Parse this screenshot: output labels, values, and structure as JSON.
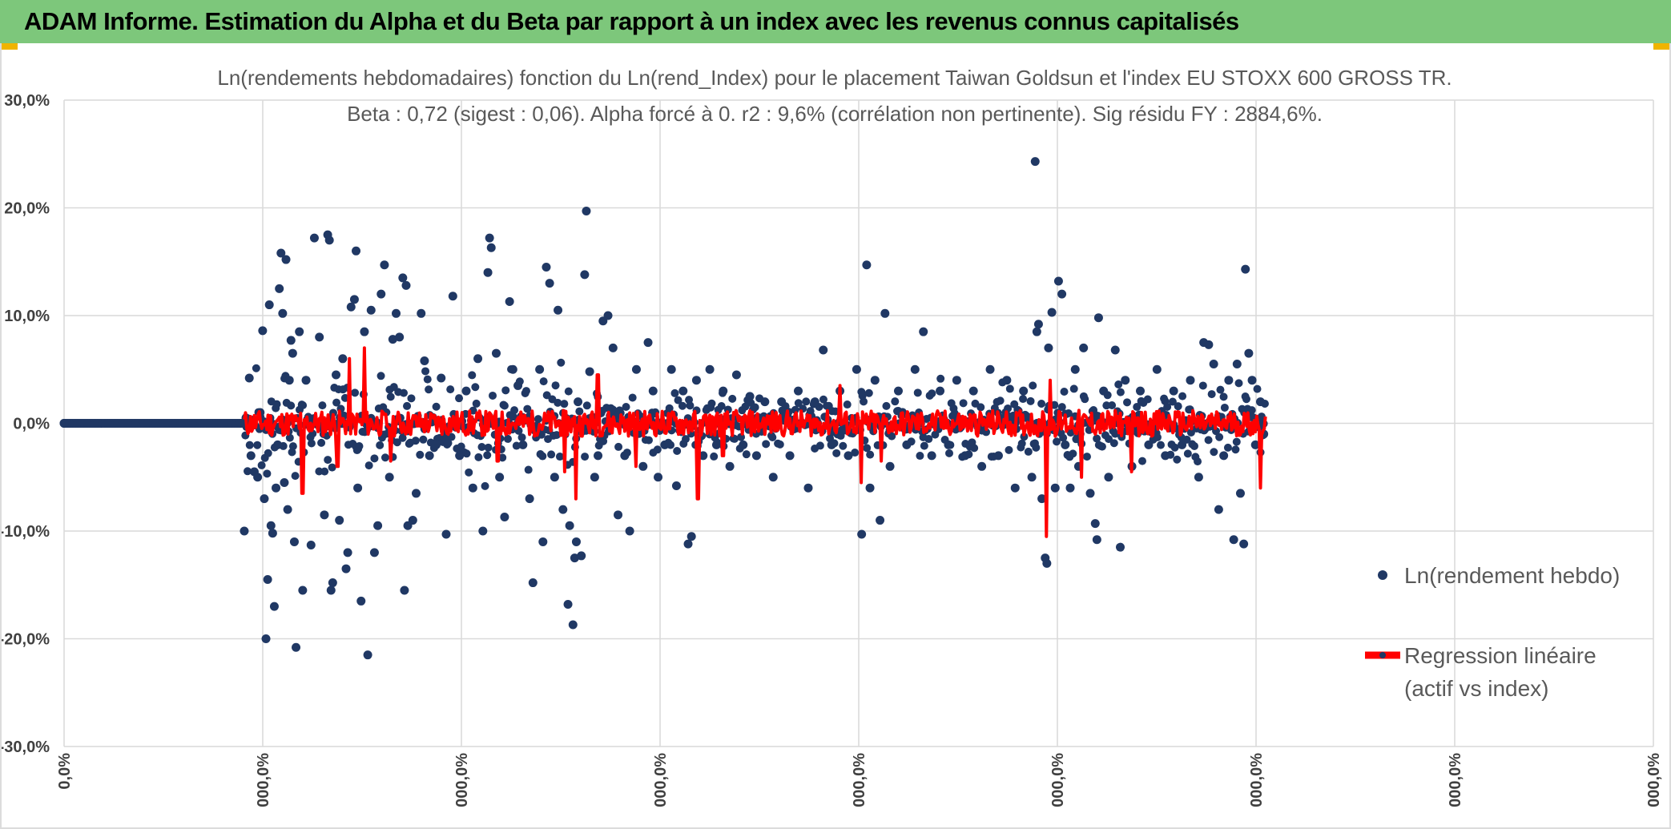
{
  "header": {
    "title": "ADAM Informe. Estimation du Alpha et du Beta par rapport à un index avec les revenus connus capitalisés"
  },
  "colors": {
    "banner": "#7dc77b",
    "scatter": "#203864",
    "regression": "#ff0000",
    "grid": "#d9d9d9"
  },
  "chart_data": {
    "type": "scatter",
    "title_lines": [
      "Ln(rendements hebdomadaires) fonction du Ln(rend_Index) pour le placement Taiwan Goldsun  et l'index EU STOXX 600 GROSS TR.",
      "Beta : 0,72 (sigest : 0,06). Alpha forcé à 0. r2 : 9,6% (corrélation non pertinente). Sig résidu FY : 2884,6%."
    ],
    "ylim": [
      -30,
      30
    ],
    "y_ticks": [
      "30,0%",
      "20,0%",
      "10,0%",
      "0,0%",
      "-10,0%",
      "-20,0%",
      "-30,0%"
    ],
    "x_ticks": [
      "0,0%",
      "000,0%",
      "000,0%",
      "000,0%",
      "000,0%",
      "000,0%",
      "000,0%",
      "000,0%",
      "000,0%"
    ],
    "grid": true,
    "legend_position": "right",
    "legend": [
      {
        "label": "Ln(rendement hebdo)",
        "kind": "marker"
      },
      {
        "label_lines": [
          "Regression linéaire",
          "(actif vs index)"
        ],
        "kind": "line"
      }
    ],
    "series": [
      {
        "name": "Ln(rendement hebdo)",
        "points": [
          [
            0,
            0
          ],
          [
            216,
            -10
          ],
          [
            218,
            0.5
          ],
          [
            222,
            4.2
          ],
          [
            224,
            -3
          ],
          [
            228,
            -4.5
          ],
          [
            232,
            -5
          ],
          [
            235,
            1
          ],
          [
            238,
            8.6
          ],
          [
            240,
            -7
          ],
          [
            242,
            -20
          ],
          [
            244,
            -14.5
          ],
          [
            246,
            11
          ],
          [
            248,
            -9.5
          ],
          [
            250,
            -10.2
          ],
          [
            252,
            -17
          ],
          [
            254,
            -6
          ],
          [
            256,
            -2
          ],
          [
            258,
            12.5
          ],
          [
            260,
            15.8
          ],
          [
            262,
            10.2
          ],
          [
            264,
            -5.5
          ],
          [
            266,
            15.2
          ],
          [
            268,
            -8
          ],
          [
            270,
            4
          ],
          [
            272,
            7.7
          ],
          [
            274,
            6.5
          ],
          [
            276,
            -11
          ],
          [
            278,
            -20.8
          ],
          [
            282,
            8.5
          ],
          [
            286,
            -15.5
          ],
          [
            290,
            4
          ],
          [
            296,
            -11.3
          ],
          [
            300,
            17.2
          ],
          [
            306,
            8
          ],
          [
            312,
            -8.5
          ],
          [
            316,
            17.5
          ],
          [
            318,
            17
          ],
          [
            320,
            -15.5
          ],
          [
            322,
            -14.8
          ],
          [
            326,
            4.5
          ],
          [
            330,
            -9
          ],
          [
            334,
            6
          ],
          [
            338,
            -13.5
          ],
          [
            340,
            -12
          ],
          [
            344,
            10.8
          ],
          [
            348,
            11.5
          ],
          [
            350,
            16
          ],
          [
            352,
            -6
          ],
          [
            356,
            -16.5
          ],
          [
            360,
            8.5
          ],
          [
            364,
            -21.5
          ],
          [
            368,
            10.5
          ],
          [
            372,
            -12
          ],
          [
            376,
            -9.5
          ],
          [
            380,
            12
          ],
          [
            384,
            14.7
          ],
          [
            390,
            -5
          ],
          [
            394,
            7.8
          ],
          [
            398,
            10.2
          ],
          [
            402,
            8
          ],
          [
            406,
            13.5
          ],
          [
            408,
            -15.5
          ],
          [
            410,
            12.8
          ],
          [
            412,
            -9.5
          ],
          [
            418,
            -9
          ],
          [
            422,
            -6.5
          ],
          [
            428,
            10.2
          ],
          [
            432,
            5.8
          ],
          [
            438,
            -3
          ],
          [
            446,
            -2
          ],
          [
            452,
            4.2
          ],
          [
            458,
            -10.3
          ],
          [
            466,
            11.8
          ],
          [
            474,
            -3
          ],
          [
            482,
            3
          ],
          [
            490,
            -6
          ],
          [
            496,
            6
          ],
          [
            502,
            -10
          ],
          [
            508,
            14
          ],
          [
            510,
            17.2
          ],
          [
            512,
            16.3
          ],
          [
            518,
            6.5
          ],
          [
            522,
            -5
          ],
          [
            528,
            -8.7
          ],
          [
            534,
            11.3
          ],
          [
            538,
            5
          ],
          [
            544,
            3.5
          ],
          [
            550,
            -2
          ],
          [
            558,
            -7
          ],
          [
            562,
            -14.8
          ],
          [
            570,
            5
          ],
          [
            574,
            -11
          ],
          [
            578,
            14.5
          ],
          [
            582,
            13
          ],
          [
            588,
            -5
          ],
          [
            592,
            10.5
          ],
          [
            598,
            -8
          ],
          [
            604,
            -16.8
          ],
          [
            606,
            -9.5
          ],
          [
            610,
            -18.7
          ],
          [
            612,
            -12.5
          ],
          [
            614,
            -11
          ],
          [
            616,
            2
          ],
          [
            620,
            -12.3
          ],
          [
            624,
            13.8
          ],
          [
            626,
            19.7
          ],
          [
            630,
            4.8
          ],
          [
            636,
            -5
          ],
          [
            640,
            -3
          ],
          [
            646,
            9.5
          ],
          [
            652,
            10
          ],
          [
            658,
            7
          ],
          [
            664,
            -8.5
          ],
          [
            672,
            -3
          ],
          [
            678,
            -10
          ],
          [
            686,
            5
          ],
          [
            694,
            -4
          ],
          [
            700,
            7.5
          ],
          [
            706,
            3
          ],
          [
            712,
            -5
          ],
          [
            720,
            -2
          ],
          [
            728,
            5
          ],
          [
            734,
            -5.8
          ],
          [
            742,
            3
          ],
          [
            748,
            -11.2
          ],
          [
            752,
            -10.5
          ],
          [
            758,
            4
          ],
          [
            766,
            -3
          ],
          [
            774,
            5
          ],
          [
            782,
            -2
          ],
          [
            790,
            3
          ],
          [
            798,
            -4
          ],
          [
            806,
            4.5
          ],
          [
            814,
            -2
          ],
          [
            822,
            2.5
          ],
          [
            830,
            -3
          ],
          [
            840,
            2
          ],
          [
            850,
            -5
          ],
          [
            860,
            2
          ],
          [
            870,
            -3
          ],
          [
            880,
            3
          ],
          [
            892,
            -6
          ],
          [
            900,
            2
          ],
          [
            910,
            6.8
          ],
          [
            920,
            -2
          ],
          [
            930,
            3
          ],
          [
            940,
            -3
          ],
          [
            950,
            5
          ],
          [
            956,
            -10.3
          ],
          [
            962,
            14.7
          ],
          [
            966,
            -6
          ],
          [
            972,
            4
          ],
          [
            978,
            -9
          ],
          [
            984,
            10.2
          ],
          [
            990,
            -4
          ],
          [
            1000,
            3
          ],
          [
            1010,
            -2
          ],
          [
            1020,
            5
          ],
          [
            1030,
            8.5
          ],
          [
            1040,
            -3
          ],
          [
            1050,
            3
          ],
          [
            1060,
            -2
          ],
          [
            1070,
            4
          ],
          [
            1080,
            -3
          ],
          [
            1090,
            3
          ],
          [
            1100,
            -4
          ],
          [
            1110,
            5
          ],
          [
            1120,
            -3
          ],
          [
            1130,
            4
          ],
          [
            1140,
            -6
          ],
          [
            1150,
            3
          ],
          [
            1160,
            -5
          ],
          [
            1164,
            24.3
          ],
          [
            1166,
            8.5
          ],
          [
            1168,
            9.2
          ],
          [
            1172,
            -7
          ],
          [
            1176,
            -12.5
          ],
          [
            1178,
            -13
          ],
          [
            1180,
            7
          ],
          [
            1184,
            10.3
          ],
          [
            1188,
            -6
          ],
          [
            1192,
            13.2
          ],
          [
            1196,
            12
          ],
          [
            1200,
            -2
          ],
          [
            1206,
            -6
          ],
          [
            1212,
            5
          ],
          [
            1216,
            -4
          ],
          [
            1222,
            7
          ],
          [
            1230,
            -6.5
          ],
          [
            1236,
            -9.3
          ],
          [
            1238,
            -10.8
          ],
          [
            1240,
            9.8
          ],
          [
            1246,
            3
          ],
          [
            1252,
            -5
          ],
          [
            1260,
            6.8
          ],
          [
            1266,
            -11.5
          ],
          [
            1272,
            4
          ],
          [
            1280,
            -4
          ],
          [
            1290,
            3
          ],
          [
            1300,
            -2
          ],
          [
            1310,
            5
          ],
          [
            1320,
            -3
          ],
          [
            1330,
            3
          ],
          [
            1340,
            -2
          ],
          [
            1350,
            4
          ],
          [
            1360,
            -5
          ],
          [
            1366,
            7.5
          ],
          [
            1372,
            7.3
          ],
          [
            1378,
            5.5
          ],
          [
            1384,
            -8
          ],
          [
            1390,
            -3
          ],
          [
            1396,
            4
          ],
          [
            1402,
            -10.8
          ],
          [
            1406,
            5.5
          ],
          [
            1410,
            -6.5
          ],
          [
            1414,
            -11.2
          ],
          [
            1416,
            14.3
          ],
          [
            1420,
            6.5
          ],
          [
            1424,
            4
          ],
          [
            1428,
            -2
          ],
          [
            1434,
            2
          ],
          [
            1438,
            -1
          ]
        ]
      },
      {
        "name": "Regression linéaire",
        "description": "red regression line y = 0,72 × index return, spanning x = 216 to 1440",
        "beta": 0.72
      }
    ]
  }
}
